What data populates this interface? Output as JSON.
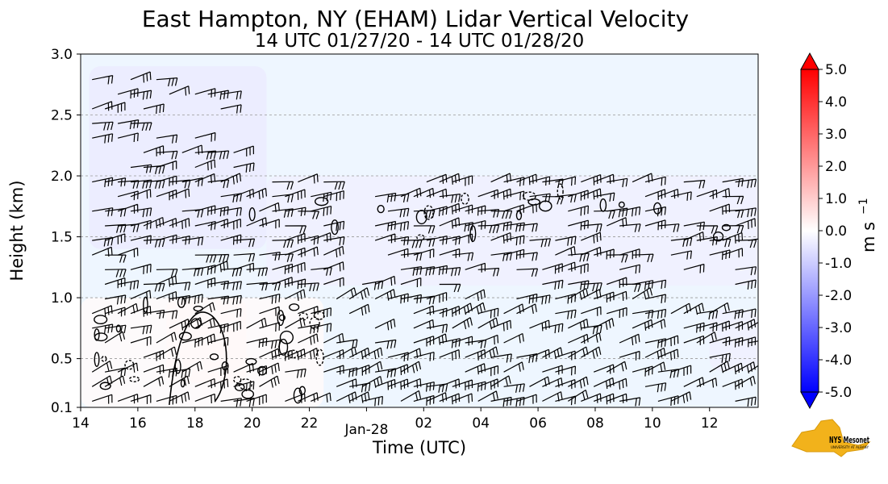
{
  "chart_data": {
    "type": "heatmap",
    "title": "East Hampton, NY (EHAM) Lidar Vertical Velocity",
    "subtitle": "14 UTC 01/27/20 - 14 UTC 01/28/20",
    "xlabel": "Time (UTC)",
    "ylabel": "Height (km)",
    "xlim": [
      14,
      37.7
    ],
    "ylim": [
      0.1,
      3.0
    ],
    "x_ticks": [
      {
        "value": 14,
        "label": "14"
      },
      {
        "value": 16,
        "label": "16"
      },
      {
        "value": 18,
        "label": "18"
      },
      {
        "value": 20,
        "label": "20"
      },
      {
        "value": 22,
        "label": "22"
      },
      {
        "value": 26,
        "label": "02"
      },
      {
        "value": 28,
        "label": "04"
      },
      {
        "value": 30,
        "label": "06"
      },
      {
        "value": 32,
        "label": "08"
      },
      {
        "value": 34,
        "label": "10"
      },
      {
        "value": 36,
        "label": "12"
      }
    ],
    "x_date_label": {
      "value": 24,
      "label": "Jan-28"
    },
    "y_ticks": [
      {
        "value": 0.1,
        "label": "0.1"
      },
      {
        "value": 0.5,
        "label": "0.5"
      },
      {
        "value": 1.0,
        "label": "1.0"
      },
      {
        "value": 1.5,
        "label": "1.5"
      },
      {
        "value": 2.0,
        "label": "2.0"
      },
      {
        "value": 2.5,
        "label": "2.5"
      },
      {
        "value": 3.0,
        "label": "3.0"
      }
    ],
    "grid": {
      "y": true,
      "x": false,
      "style": "dashed"
    },
    "colorbar": {
      "label": "m s",
      "label_superscript": "−1",
      "range": [
        -5.0,
        5.0
      ],
      "extend": "both",
      "ticks": [
        "5.0",
        "4.0",
        "3.0",
        "2.0",
        "1.0",
        "0.0",
        "-1.0",
        "-2.0",
        "-3.0",
        "-4.0",
        "-5.0"
      ],
      "tick_values": [
        5,
        4,
        3,
        2,
        1,
        0,
        -1,
        -2,
        -3,
        -4,
        -5
      ],
      "colors": {
        "negative": "#0000ff",
        "zero": "#ffffff",
        "positive": "#ff0000"
      }
    },
    "velocity_regions": [
      {
        "name": "upper-downdraft-early",
        "x": [
          14.3,
          20.5
        ],
        "y": [
          1.4,
          2.9
        ],
        "value": -0.4
      },
      {
        "name": "upper-downdraft-band",
        "x": [
          20.5,
          37.7
        ],
        "y": [
          1.1,
          2.0
        ],
        "value": -0.3
      },
      {
        "name": "lower-updraft-18z",
        "x": [
          17.0,
          19.8
        ],
        "y": [
          0.3,
          1.0
        ],
        "value": 0.4
      },
      {
        "name": "lower-mixed-early",
        "x": [
          14.0,
          22.5
        ],
        "y": [
          0.1,
          1.0
        ],
        "value": 0.1
      },
      {
        "name": "lower-downdraft-late",
        "x": [
          36.0,
          37.7
        ],
        "y": [
          0.4,
          0.9
        ],
        "value": -0.3
      }
    ],
    "wind_barbs": "present",
    "contours": "present",
    "background_color": "#eef6ff"
  },
  "logo": {
    "text": "NYS Mesonet",
    "subtext": "UNIVERSITY AT ALBANY",
    "color": "#5a2d82",
    "state_color": "#f2b21b"
  }
}
